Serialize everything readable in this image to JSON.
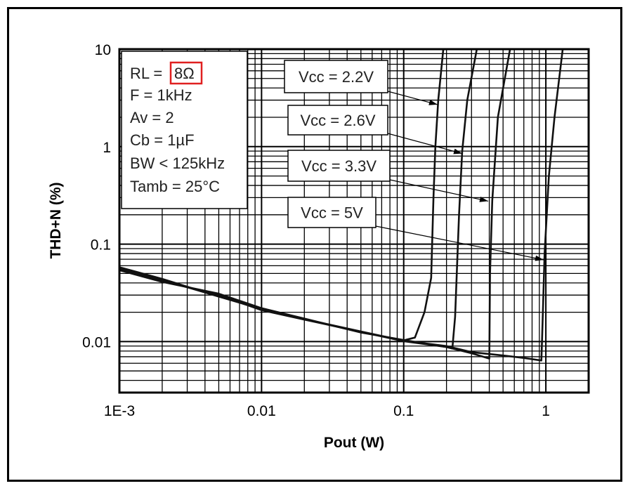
{
  "chart_data": {
    "type": "line",
    "title": "",
    "xlabel": "Pout (W)",
    "ylabel": "THD+N (%)",
    "xscale": "log",
    "yscale": "log",
    "xlim": [
      0.001,
      2
    ],
    "ylim": [
      0.003,
      10
    ],
    "grid": true,
    "x_ticks": [
      {
        "value": 0.001,
        "label": "1E-3"
      },
      {
        "value": 0.01,
        "label": "0.01"
      },
      {
        "value": 0.1,
        "label": "0.1"
      },
      {
        "value": 1,
        "label": "1"
      }
    ],
    "y_ticks": [
      {
        "value": 10,
        "label": "10"
      },
      {
        "value": 1,
        "label": "1"
      },
      {
        "value": 0.1,
        "label": "0.1"
      },
      {
        "value": 0.01,
        "label": "0.01"
      }
    ],
    "conditions": {
      "rl_prefix": "RL = ",
      "rl_value": "8Ω",
      "lines": [
        "F = 1kHz",
        "Av = 2",
        "Cb = 1µF",
        "BW < 125kHz",
        "Tamb = 25°C"
      ]
    },
    "highlight_color": "#e02020",
    "series": [
      {
        "name": "Vcc = 2.2V",
        "arrow_to": [
          0.173,
          2.7
        ],
        "x": [
          0.001,
          0.002,
          0.005,
          0.01,
          0.02,
          0.05,
          0.1,
          0.12,
          0.14,
          0.156,
          0.162,
          0.167,
          0.175,
          0.19
        ],
        "y": [
          0.055,
          0.043,
          0.029,
          0.022,
          0.017,
          0.0125,
          0.0103,
          0.011,
          0.02,
          0.045,
          0.3,
          1,
          3,
          10
        ]
      },
      {
        "name": "Vcc = 2.6V",
        "arrow_to": [
          0.258,
          0.85
        ],
        "x": [
          0.001,
          0.002,
          0.005,
          0.01,
          0.02,
          0.05,
          0.1,
          0.2,
          0.22,
          0.23,
          0.245,
          0.258,
          0.28,
          0.327
        ],
        "y": [
          0.057,
          0.042,
          0.03,
          0.021,
          0.0168,
          0.0126,
          0.0101,
          0.0088,
          0.0085,
          0.018,
          0.2,
          0.9,
          3,
          10
        ]
      },
      {
        "name": "Vcc = 3.3V",
        "arrow_to": [
          0.393,
          0.276
        ],
        "x": [
          0.001,
          0.002,
          0.005,
          0.01,
          0.02,
          0.05,
          0.1,
          0.2,
          0.3,
          0.4,
          0.405,
          0.42,
          0.46,
          0.56
        ],
        "y": [
          0.054,
          0.041,
          0.031,
          0.022,
          0.0172,
          0.0124,
          0.0104,
          0.0088,
          0.0076,
          0.0067,
          0.05,
          0.28,
          2,
          10
        ]
      },
      {
        "name": "Vcc = 5V",
        "arrow_to": [
          0.966,
          0.069
        ],
        "x": [
          0.001,
          0.002,
          0.005,
          0.01,
          0.02,
          0.05,
          0.1,
          0.2,
          0.3,
          0.5,
          0.7,
          0.93,
          0.94,
          0.98,
          1.05,
          1.15,
          1.315
        ],
        "y": [
          0.058,
          0.044,
          0.029,
          0.0215,
          0.017,
          0.0127,
          0.0102,
          0.009,
          0.0078,
          0.0072,
          0.0068,
          0.0064,
          0.01,
          0.08,
          0.5,
          2,
          10
        ]
      }
    ]
  }
}
